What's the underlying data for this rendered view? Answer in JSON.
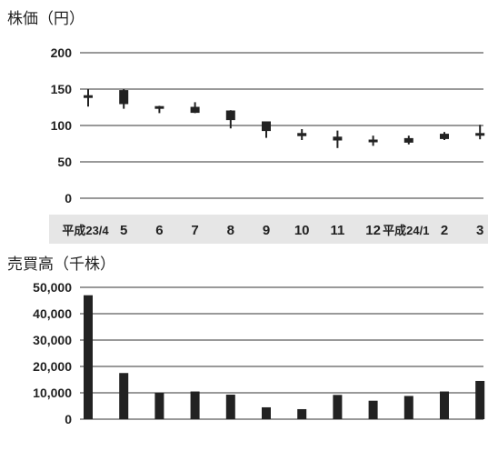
{
  "chart_data": [
    {
      "type": "candlestick",
      "title": "株価（円）",
      "ylim": [
        0,
        200
      ],
      "yticks": [
        "0",
        "50",
        "100",
        "150",
        "200"
      ],
      "categories": [
        "平成23/4",
        "5",
        "6",
        "7",
        "8",
        "9",
        "10",
        "11",
        "12",
        "平成24/1",
        "2",
        "3"
      ],
      "open": [
        141,
        148,
        126,
        125,
        120,
        105,
        89,
        84,
        80,
        82,
        88,
        89
      ],
      "close": [
        139,
        130,
        124,
        118,
        108,
        93,
        86,
        80,
        79,
        77,
        82,
        88
      ],
      "high": [
        150,
        150,
        127,
        132,
        121,
        105,
        95,
        93,
        86,
        86,
        91,
        101
      ],
      "low": [
        126,
        123,
        117,
        117,
        96,
        83,
        80,
        69,
        72,
        74,
        80,
        81
      ],
      "colors": {
        "filled": "#222222",
        "hollow": "#ffffff",
        "band": "#e6e6e6"
      }
    },
    {
      "type": "bar",
      "title": "売買高（千株）",
      "ylim": [
        0,
        50000
      ],
      "yticks": [
        "0",
        "10,000",
        "20,000",
        "30,000",
        "40,000",
        "50,000"
      ],
      "categories": [
        "平成23/4",
        "5",
        "6",
        "7",
        "8",
        "9",
        "10",
        "11",
        "12",
        "平成24/1",
        "2",
        "3"
      ],
      "values": [
        47000,
        17500,
        10000,
        10500,
        9300,
        4500,
        3800,
        9200,
        7000,
        8800,
        10500,
        14500
      ],
      "colors": {
        "bar": "#222222"
      }
    }
  ]
}
